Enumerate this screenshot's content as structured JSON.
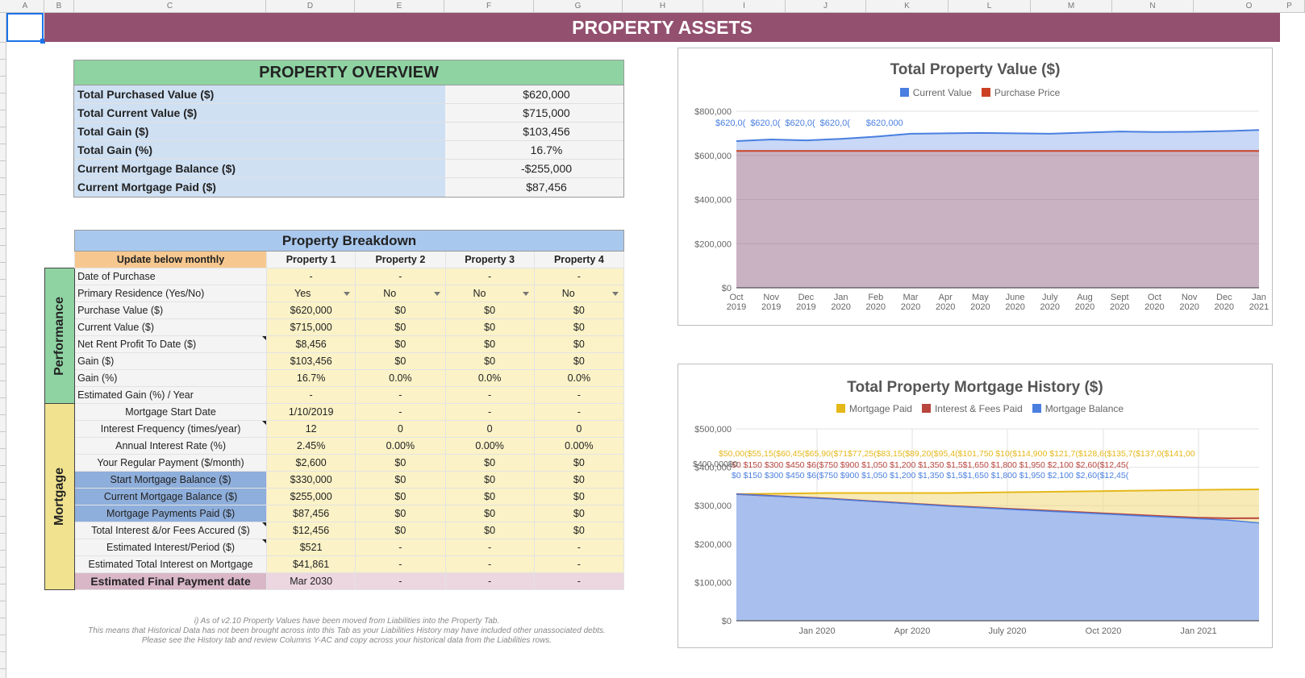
{
  "sheet": {
    "columns": [
      "A",
      "B",
      "C",
      "D",
      "E",
      "F",
      "G",
      "H",
      "I",
      "J",
      "K",
      "L",
      "M",
      "N",
      "O",
      "P"
    ],
    "banner_title": "PROPERTY ASSETS"
  },
  "overview": {
    "title": "PROPERTY OVERVIEW",
    "rows": [
      {
        "label": "Total Purchased Value ($)",
        "value": "$620,000"
      },
      {
        "label": "Total Current Value ($)",
        "value": "$715,000"
      },
      {
        "label": "Total Gain ($)",
        "value": "$103,456"
      },
      {
        "label": "Total Gain (%)",
        "value": "16.7%"
      },
      {
        "label": "Current Mortgage Balance ($)",
        "value": "-$255,000"
      },
      {
        "label": "Current Mortgage Paid ($)",
        "value": "$87,456"
      }
    ]
  },
  "breakdown": {
    "title": "Property Breakdown",
    "update_label": "Update below monthly",
    "properties": [
      "Property 1",
      "Property 2",
      "Property 3",
      "Property 4"
    ],
    "performance_label": "Performance",
    "mortgage_label": "Mortgage",
    "performance_rows": [
      {
        "label": "Date of Purchase",
        "values": [
          "-",
          "-",
          "-",
          "-"
        ]
      },
      {
        "label": "Primary Residence (Yes/No)",
        "values": [
          "Yes",
          "No",
          "No",
          "No"
        ]
      },
      {
        "label": "Purchase Value ($)",
        "values": [
          "$620,000",
          "$0",
          "$0",
          "$0"
        ]
      },
      {
        "label": "Current Value ($)",
        "values": [
          "$715,000",
          "$0",
          "$0",
          "$0"
        ]
      },
      {
        "label": "Net Rent Profit To Date ($)",
        "values": [
          "$8,456",
          "$0",
          "$0",
          "$0"
        ]
      },
      {
        "label": "Gain ($)",
        "values": [
          "$103,456",
          "$0",
          "$0",
          "$0"
        ]
      },
      {
        "label": "Gain (%)",
        "values": [
          "16.7%",
          "0.0%",
          "0.0%",
          "0.0%"
        ]
      },
      {
        "label": "Estimated Gain (%) / Year",
        "values": [
          "-",
          "-",
          "-",
          "-"
        ]
      }
    ],
    "mortgage_rows": [
      {
        "label": "Mortgage Start Date",
        "values": [
          "1/10/2019",
          "-",
          "-",
          "-"
        ]
      },
      {
        "label": "Interest Frequency (times/year)",
        "values": [
          "12",
          "0",
          "0",
          "0"
        ]
      },
      {
        "label": "Annual Interest Rate (%)",
        "values": [
          "2.45%",
          "0.00%",
          "0.00%",
          "0.00%"
        ]
      },
      {
        "label": "Your Regular Payment ($/month)",
        "values": [
          "$2,600",
          "$0",
          "$0",
          "$0"
        ]
      },
      {
        "label": "Start Mortgage Balance ($)",
        "values": [
          "$330,000",
          "$0",
          "$0",
          "$0"
        ]
      },
      {
        "label": "Current Mortgage Balance ($)",
        "values": [
          "$255,000",
          "$0",
          "$0",
          "$0"
        ]
      },
      {
        "label": "Mortgage Payments Paid ($)",
        "values": [
          "$87,456",
          "$0",
          "$0",
          "$0"
        ]
      },
      {
        "label": "Total Interest &/or Fees Accured ($)",
        "values": [
          "$12,456",
          "$0",
          "$0",
          "$0"
        ]
      },
      {
        "label": "Estimated Interest/Period ($)",
        "values": [
          "$521",
          "-",
          "-",
          "-"
        ]
      },
      {
        "label": "Estimated Total Interest on Mortgage",
        "values": [
          "$41,861",
          "-",
          "-",
          "-"
        ]
      }
    ],
    "final_row": {
      "label": "Estimated Final Payment date",
      "values": [
        "Mar 2030",
        "-",
        "-",
        "-"
      ]
    }
  },
  "note": {
    "line1": "i) As of v2.10 Property Values have been moved from Liabilities into the Property Tab.",
    "line2": "This means that Historical Data has not been brought across into this Tab as your Liabilities History may have included other unassociated debts.",
    "line3": "Please see the History tab and review Columns Y-AC and copy across your historical data from the Liabilities rows."
  },
  "chart_data": [
    {
      "type": "area",
      "title": "Total Property Value ($)",
      "categories": [
        "Oct 2019",
        "Nov 2019",
        "Dec 2019",
        "Jan 2020",
        "Feb 2020",
        "Mar 2020",
        "Apr 2020",
        "May 2020",
        "June 2020",
        "July 2020",
        "Aug 2020",
        "Sept 2020",
        "Oct 2020",
        "Nov 2020",
        "Dec 2020",
        "Jan 2021"
      ],
      "series": [
        {
          "name": "Current Value",
          "color": "#4a7fe0",
          "values": [
            665000,
            672000,
            668000,
            675000,
            685000,
            698000,
            700000,
            702000,
            700000,
            698000,
            703000,
            708000,
            706000,
            707000,
            710000,
            715000
          ]
        },
        {
          "name": "Purchase Price",
          "color": "#cc4125",
          "values": [
            620000,
            620000,
            620000,
            620000,
            620000,
            620000,
            620000,
            620000,
            620000,
            620000,
            620000,
            620000,
            620000,
            620000,
            620000,
            620000
          ]
        }
      ],
      "data_labels": [
        "$620,0(",
        "$620,0(",
        "$620,0(",
        "$620,0(",
        "$620,000"
      ],
      "ylim": [
        0,
        800000
      ],
      "yticks": [
        "$0",
        "$200,000",
        "$400,000",
        "$600,000",
        "$800,000"
      ],
      "legend": "top"
    },
    {
      "type": "area",
      "title": "Total Property Mortgage History ($)",
      "xticks": [
        "Jan 2020",
        "Apr 2020",
        "July 2020",
        "Oct 2020",
        "Jan 2021"
      ],
      "series": [
        {
          "name": "Mortgage Paid",
          "color": "#e5b81a",
          "values": [
            0,
            5000,
            10000,
            15000,
            20000,
            25000,
            30000,
            35000,
            40000,
            45000,
            50000,
            55000,
            60000,
            65000,
            70000,
            75000,
            80000,
            87456
          ]
        },
        {
          "name": "Interest & Fees Paid",
          "color": "#b8453e",
          "values": [
            0,
            150,
            300,
            450,
            600,
            750,
            900,
            1050,
            1200,
            1350,
            1500,
            1650,
            1800,
            1950,
            2100,
            2600,
            5000,
            12456
          ]
        },
        {
          "name": "Mortgage Balance",
          "color": "#4a7fe0",
          "values": [
            330000,
            326000,
            322000,
            318000,
            313000,
            308000,
            303000,
            298000,
            294000,
            290000,
            286000,
            282000,
            278000,
            274000,
            270000,
            266000,
            262000,
            255000
          ]
        }
      ],
      "data_labels_top": "$50,00($55,15($60,45($65,90($71$77,25($83,15($89,20($95,4($101,750   $10($114,900 $121,7($128,6($135,7($137,0($141,00",
      "data_labels_mid1": "$0   $150  $300  $450  $6($750  $900  $1,050 $1,200 $1,350   $1,5$1,650  $1,800 $1,950 $2,100 $2,60($12,45(",
      "data_labels_mid2": "$0   $150  $300  $450  $6($750  $900  $1,050 $1,200 $1,350   $1,5$1,650  $1,800 $1,950 $2,100 $2,60($12,45(",
      "data_labels_first": "$400,000$0",
      "ylim": [
        0,
        500000
      ],
      "yticks": [
        "$0",
        "$100,000",
        "$200,000",
        "$300,000",
        "$400,000",
        "$500,000"
      ],
      "legend": "top"
    }
  ]
}
